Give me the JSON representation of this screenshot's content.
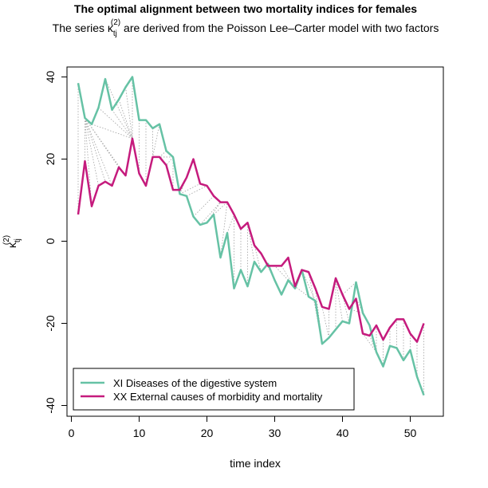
{
  "chart_data": {
    "type": "line",
    "title": "The optimal alignment between two mortality indices for females",
    "subtitle": {
      "prefix": "The series ",
      "symbol": "κ",
      "subscript": "tj",
      "superscript": "(2)",
      "suffix": " are derived from the Poisson Lee–Carter model with two factors"
    },
    "xlabel": "time index",
    "ylabel": {
      "symbol": "κ",
      "subscript": "tj",
      "superscript": "(2)"
    },
    "xlim": [
      1,
      52
    ],
    "ylim": [
      -37.5,
      40
    ],
    "xticks": [
      0,
      10,
      20,
      30,
      40,
      50
    ],
    "yticks": [
      -40,
      -20,
      0,
      20,
      40
    ],
    "grid": false,
    "legend_position": "bottom-left",
    "x": [
      1,
      2,
      3,
      4,
      5,
      6,
      7,
      8,
      9,
      10,
      11,
      12,
      13,
      14,
      15,
      16,
      17,
      18,
      19,
      20,
      21,
      22,
      23,
      24,
      25,
      26,
      27,
      28,
      29,
      30,
      31,
      32,
      33,
      34,
      35,
      36,
      37,
      38,
      39,
      40,
      41,
      42,
      43,
      44,
      45,
      46,
      47,
      48,
      49,
      50,
      51,
      52
    ],
    "series": [
      {
        "name": "XI Diseases of the digestive system",
        "color": "#66c2a5",
        "values": [
          38.5,
          30,
          28.5,
          32.5,
          39.5,
          32,
          34.5,
          37.5,
          40,
          29.5,
          29.5,
          27.5,
          28.5,
          22,
          20.5,
          11.5,
          11,
          6,
          4,
          4.5,
          6.5,
          -4,
          2,
          -11.5,
          -7,
          -11,
          -5,
          -7.5,
          -5.5,
          -9.5,
          -13,
          -9.5,
          -11.5,
          -7,
          -13.5,
          -14.5,
          -25,
          -23.5,
          -21.5,
          -19.5,
          -20,
          -10,
          -17.5,
          -20.5,
          -27,
          -30.5,
          -25.5,
          -26,
          -29,
          -26.5,
          -33,
          -37.5
        ]
      },
      {
        "name": "XX External causes of morbidity and mortality",
        "color": "#c51b7d",
        "values": [
          6.5,
          19.5,
          8.5,
          13.5,
          14.5,
          13.5,
          18,
          16,
          25,
          16.5,
          13.5,
          20.5,
          20.5,
          18.5,
          12.5,
          12.5,
          15.5,
          20,
          14,
          13.5,
          11,
          9.5,
          9.5,
          6.5,
          3,
          4.5,
          -1,
          -3,
          -6,
          -6,
          -6,
          -4,
          -11,
          -7,
          -7.5,
          -11.5,
          -16,
          -16.5,
          -9,
          -13,
          -16.5,
          -14,
          -22.5,
          -23,
          -20.5,
          -24,
          -21,
          -19,
          -19,
          -22.5,
          -24.5,
          -20
        ]
      }
    ],
    "alignment": {
      "style": "dotted",
      "color": "#a0a0a0",
      "pairs": [
        [
          1,
          1
        ],
        [
          2,
          2
        ],
        [
          2,
          3
        ],
        [
          2,
          4
        ],
        [
          2,
          5
        ],
        [
          2,
          6
        ],
        [
          2,
          7
        ],
        [
          2,
          8
        ],
        [
          3,
          9
        ],
        [
          4,
          9
        ],
        [
          5,
          9
        ],
        [
          6,
          9
        ],
        [
          7,
          9
        ],
        [
          8,
          9
        ],
        [
          9,
          9
        ],
        [
          10,
          10
        ],
        [
          11,
          11
        ],
        [
          12,
          12
        ],
        [
          13,
          12
        ],
        [
          14,
          13
        ],
        [
          15,
          13
        ],
        [
          15,
          14
        ],
        [
          15,
          15
        ],
        [
          16,
          16
        ],
        [
          16,
          17
        ],
        [
          16,
          18
        ],
        [
          16,
          19
        ],
        [
          17,
          20
        ],
        [
          18,
          21
        ],
        [
          19,
          22
        ],
        [
          20,
          22
        ],
        [
          21,
          23
        ],
        [
          22,
          23
        ],
        [
          23,
          24
        ],
        [
          24,
          24
        ],
        [
          25,
          25
        ],
        [
          26,
          26
        ],
        [
          27,
          26
        ],
        [
          28,
          27
        ],
        [
          29,
          28
        ],
        [
          30,
          28
        ],
        [
          31,
          29
        ],
        [
          32,
          30
        ],
        [
          33,
          31
        ],
        [
          33,
          32
        ],
        [
          34,
          33
        ],
        [
          35,
          33
        ],
        [
          36,
          34
        ],
        [
          37,
          35
        ],
        [
          37,
          36
        ],
        [
          38,
          37
        ],
        [
          38,
          38
        ],
        [
          39,
          39
        ],
        [
          40,
          39
        ],
        [
          41,
          40
        ],
        [
          42,
          40
        ],
        [
          43,
          41
        ],
        [
          44,
          42
        ],
        [
          45,
          43
        ],
        [
          45,
          44
        ],
        [
          45,
          45
        ],
        [
          46,
          46
        ],
        [
          47,
          47
        ],
        [
          48,
          48
        ],
        [
          49,
          49
        ],
        [
          50,
          50
        ],
        [
          51,
          51
        ],
        [
          52,
          52
        ]
      ]
    }
  }
}
